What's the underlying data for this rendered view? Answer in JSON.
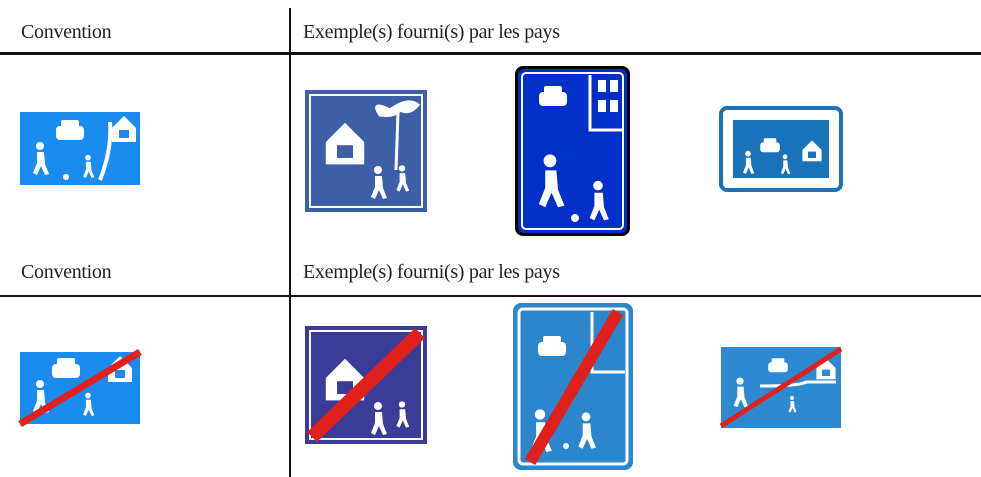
{
  "table": {
    "sections": [
      {
        "header": [
          "Convention",
          "Exemple(s) fourni(s) par les pays"
        ]
      },
      {
        "header": [
          "Convention",
          "Exemple(s) fourni(s) par les pays"
        ]
      }
    ]
  }
}
